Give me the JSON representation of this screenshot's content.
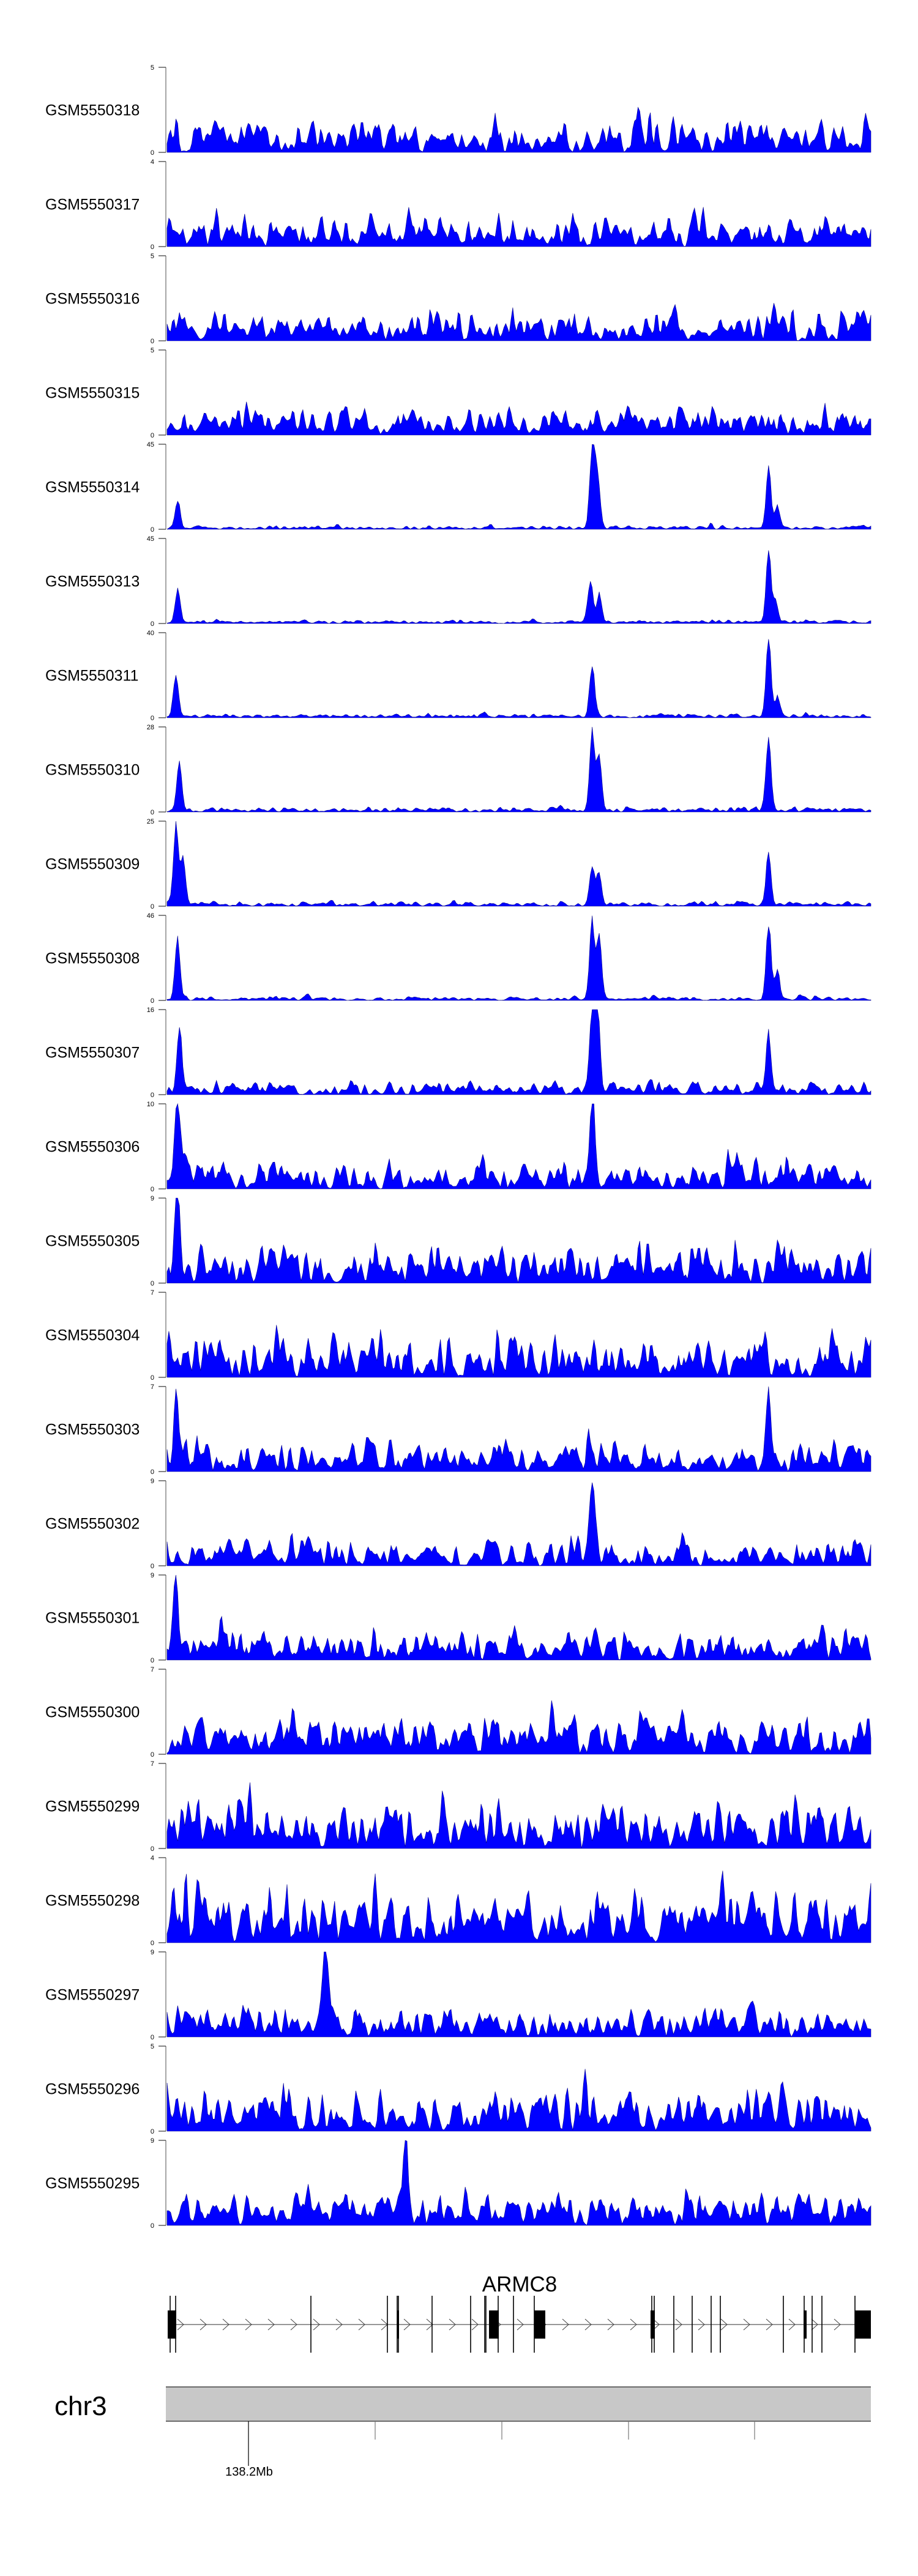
{
  "chart_data": {
    "type": "area",
    "title": "",
    "bins": 400,
    "series_color": "#0000ff",
    "series_outline": "#00008b",
    "tracks": [
      {
        "name": "GSM5550318",
        "ylim": [
          0,
          5
        ],
        "noise": 2.2,
        "seed": 318,
        "peaks": []
      },
      {
        "name": "GSM5550317",
        "ylim": [
          0,
          4
        ],
        "noise": 1.8,
        "seed": 317,
        "peaks": []
      },
      {
        "name": "GSM5550316",
        "ylim": [
          0,
          5
        ],
        "noise": 2.0,
        "seed": 316,
        "peaks": []
      },
      {
        "name": "GSM5550315",
        "ylim": [
          0,
          5
        ],
        "noise": 2.0,
        "seed": 315,
        "peaks": []
      },
      {
        "name": "GSM5550314",
        "ylim": [
          0,
          45
        ],
        "noise": 2.5,
        "seed": 314,
        "peaks": [
          {
            "bin": 6,
            "height": 16
          },
          {
            "bin": 241,
            "height": 42
          },
          {
            "bin": 244,
            "height": 30
          },
          {
            "bin": 341,
            "height": 34
          },
          {
            "bin": 346,
            "height": 12
          }
        ]
      },
      {
        "name": "GSM5550313",
        "ylim": [
          0,
          45
        ],
        "noise": 2.2,
        "seed": 313,
        "peaks": [
          {
            "bin": 6,
            "height": 20
          },
          {
            "bin": 240,
            "height": 24
          },
          {
            "bin": 245,
            "height": 16
          },
          {
            "bin": 341,
            "height": 40
          },
          {
            "bin": 345,
            "height": 12
          }
        ]
      },
      {
        "name": "GSM5550311",
        "ylim": [
          0,
          40
        ],
        "noise": 2.2,
        "seed": 311,
        "peaks": [
          {
            "bin": 5,
            "height": 22
          },
          {
            "bin": 241,
            "height": 25
          },
          {
            "bin": 341,
            "height": 38
          },
          {
            "bin": 346,
            "height": 10
          }
        ]
      },
      {
        "name": "GSM5550310",
        "ylim": [
          0,
          28
        ],
        "noise": 2.0,
        "seed": 310,
        "peaks": [
          {
            "bin": 7,
            "height": 18
          },
          {
            "bin": 241,
            "height": 27
          },
          {
            "bin": 245,
            "height": 20
          },
          {
            "bin": 341,
            "height": 26
          }
        ]
      },
      {
        "name": "GSM5550309",
        "ylim": [
          0,
          25
        ],
        "noise": 1.6,
        "seed": 309,
        "peaks": [
          {
            "bin": 5,
            "height": 25
          },
          {
            "bin": 9,
            "height": 14
          },
          {
            "bin": 241,
            "height": 12
          },
          {
            "bin": 245,
            "height": 10
          },
          {
            "bin": 341,
            "height": 16
          }
        ]
      },
      {
        "name": "GSM5550308",
        "ylim": [
          0,
          46
        ],
        "noise": 2.5,
        "seed": 308,
        "peaks": [
          {
            "bin": 6,
            "height": 36
          },
          {
            "bin": 241,
            "height": 45
          },
          {
            "bin": 245,
            "height": 36
          },
          {
            "bin": 341,
            "height": 44
          },
          {
            "bin": 346,
            "height": 16
          }
        ]
      },
      {
        "name": "GSM5550307",
        "ylim": [
          0,
          16
        ],
        "noise": 3.0,
        "seed": 307,
        "peaks": [
          {
            "bin": 7,
            "height": 12
          },
          {
            "bin": 241,
            "height": 14
          },
          {
            "bin": 244,
            "height": 16
          },
          {
            "bin": 341,
            "height": 11
          }
        ]
      },
      {
        "name": "GSM5550306",
        "ylim": [
          0,
          10
        ],
        "noise": 4.0,
        "seed": 306,
        "peaks": [
          {
            "bin": 6,
            "height": 9
          },
          {
            "bin": 241,
            "height": 10
          }
        ]
      },
      {
        "name": "GSM5550305",
        "ylim": [
          0,
          9
        ],
        "noise": 4.5,
        "seed": 305,
        "peaks": [
          {
            "bin": 6,
            "height": 9
          }
        ]
      },
      {
        "name": "GSM5550304",
        "ylim": [
          0,
          7
        ],
        "noise": 4.0,
        "seed": 304,
        "peaks": []
      },
      {
        "name": "GSM5550303",
        "ylim": [
          0,
          7
        ],
        "noise": 3.0,
        "seed": 303,
        "peaks": [
          {
            "bin": 5,
            "height": 5.5
          },
          {
            "bin": 341,
            "height": 7
          }
        ]
      },
      {
        "name": "GSM5550302",
        "ylim": [
          0,
          9
        ],
        "noise": 3.5,
        "seed": 302,
        "peaks": [
          {
            "bin": 241,
            "height": 9
          }
        ]
      },
      {
        "name": "GSM5550301",
        "ylim": [
          0,
          9
        ],
        "noise": 3.5,
        "seed": 301,
        "peaks": [
          {
            "bin": 5,
            "height": 8
          }
        ]
      },
      {
        "name": "GSM5550300",
        "ylim": [
          0,
          7
        ],
        "noise": 4.0,
        "seed": 300,
        "peaks": []
      },
      {
        "name": "GSM5550299",
        "ylim": [
          0,
          7
        ],
        "noise": 4.5,
        "seed": 299,
        "peaks": []
      },
      {
        "name": "GSM5550298",
        "ylim": [
          0,
          4
        ],
        "noise": 3.0,
        "seed": 298,
        "peaks": []
      },
      {
        "name": "GSM5550297",
        "ylim": [
          0,
          9
        ],
        "noise": 4.0,
        "seed": 297,
        "peaks": [
          {
            "bin": 90,
            "height": 9
          }
        ]
      },
      {
        "name": "GSM5550296",
        "ylim": [
          0,
          5
        ],
        "noise": 3.0,
        "seed": 296,
        "peaks": []
      },
      {
        "name": "GSM5550295",
        "ylim": [
          0,
          9
        ],
        "noise": 4.0,
        "seed": 295,
        "peaks": [
          {
            "bin": 135,
            "height": 9
          }
        ]
      }
    ],
    "gene": {
      "name": "ARMC8",
      "strand": "+"
    },
    "chromosome": "chr3",
    "axis_tick_labels": [
      "138.2Mb"
    ]
  }
}
